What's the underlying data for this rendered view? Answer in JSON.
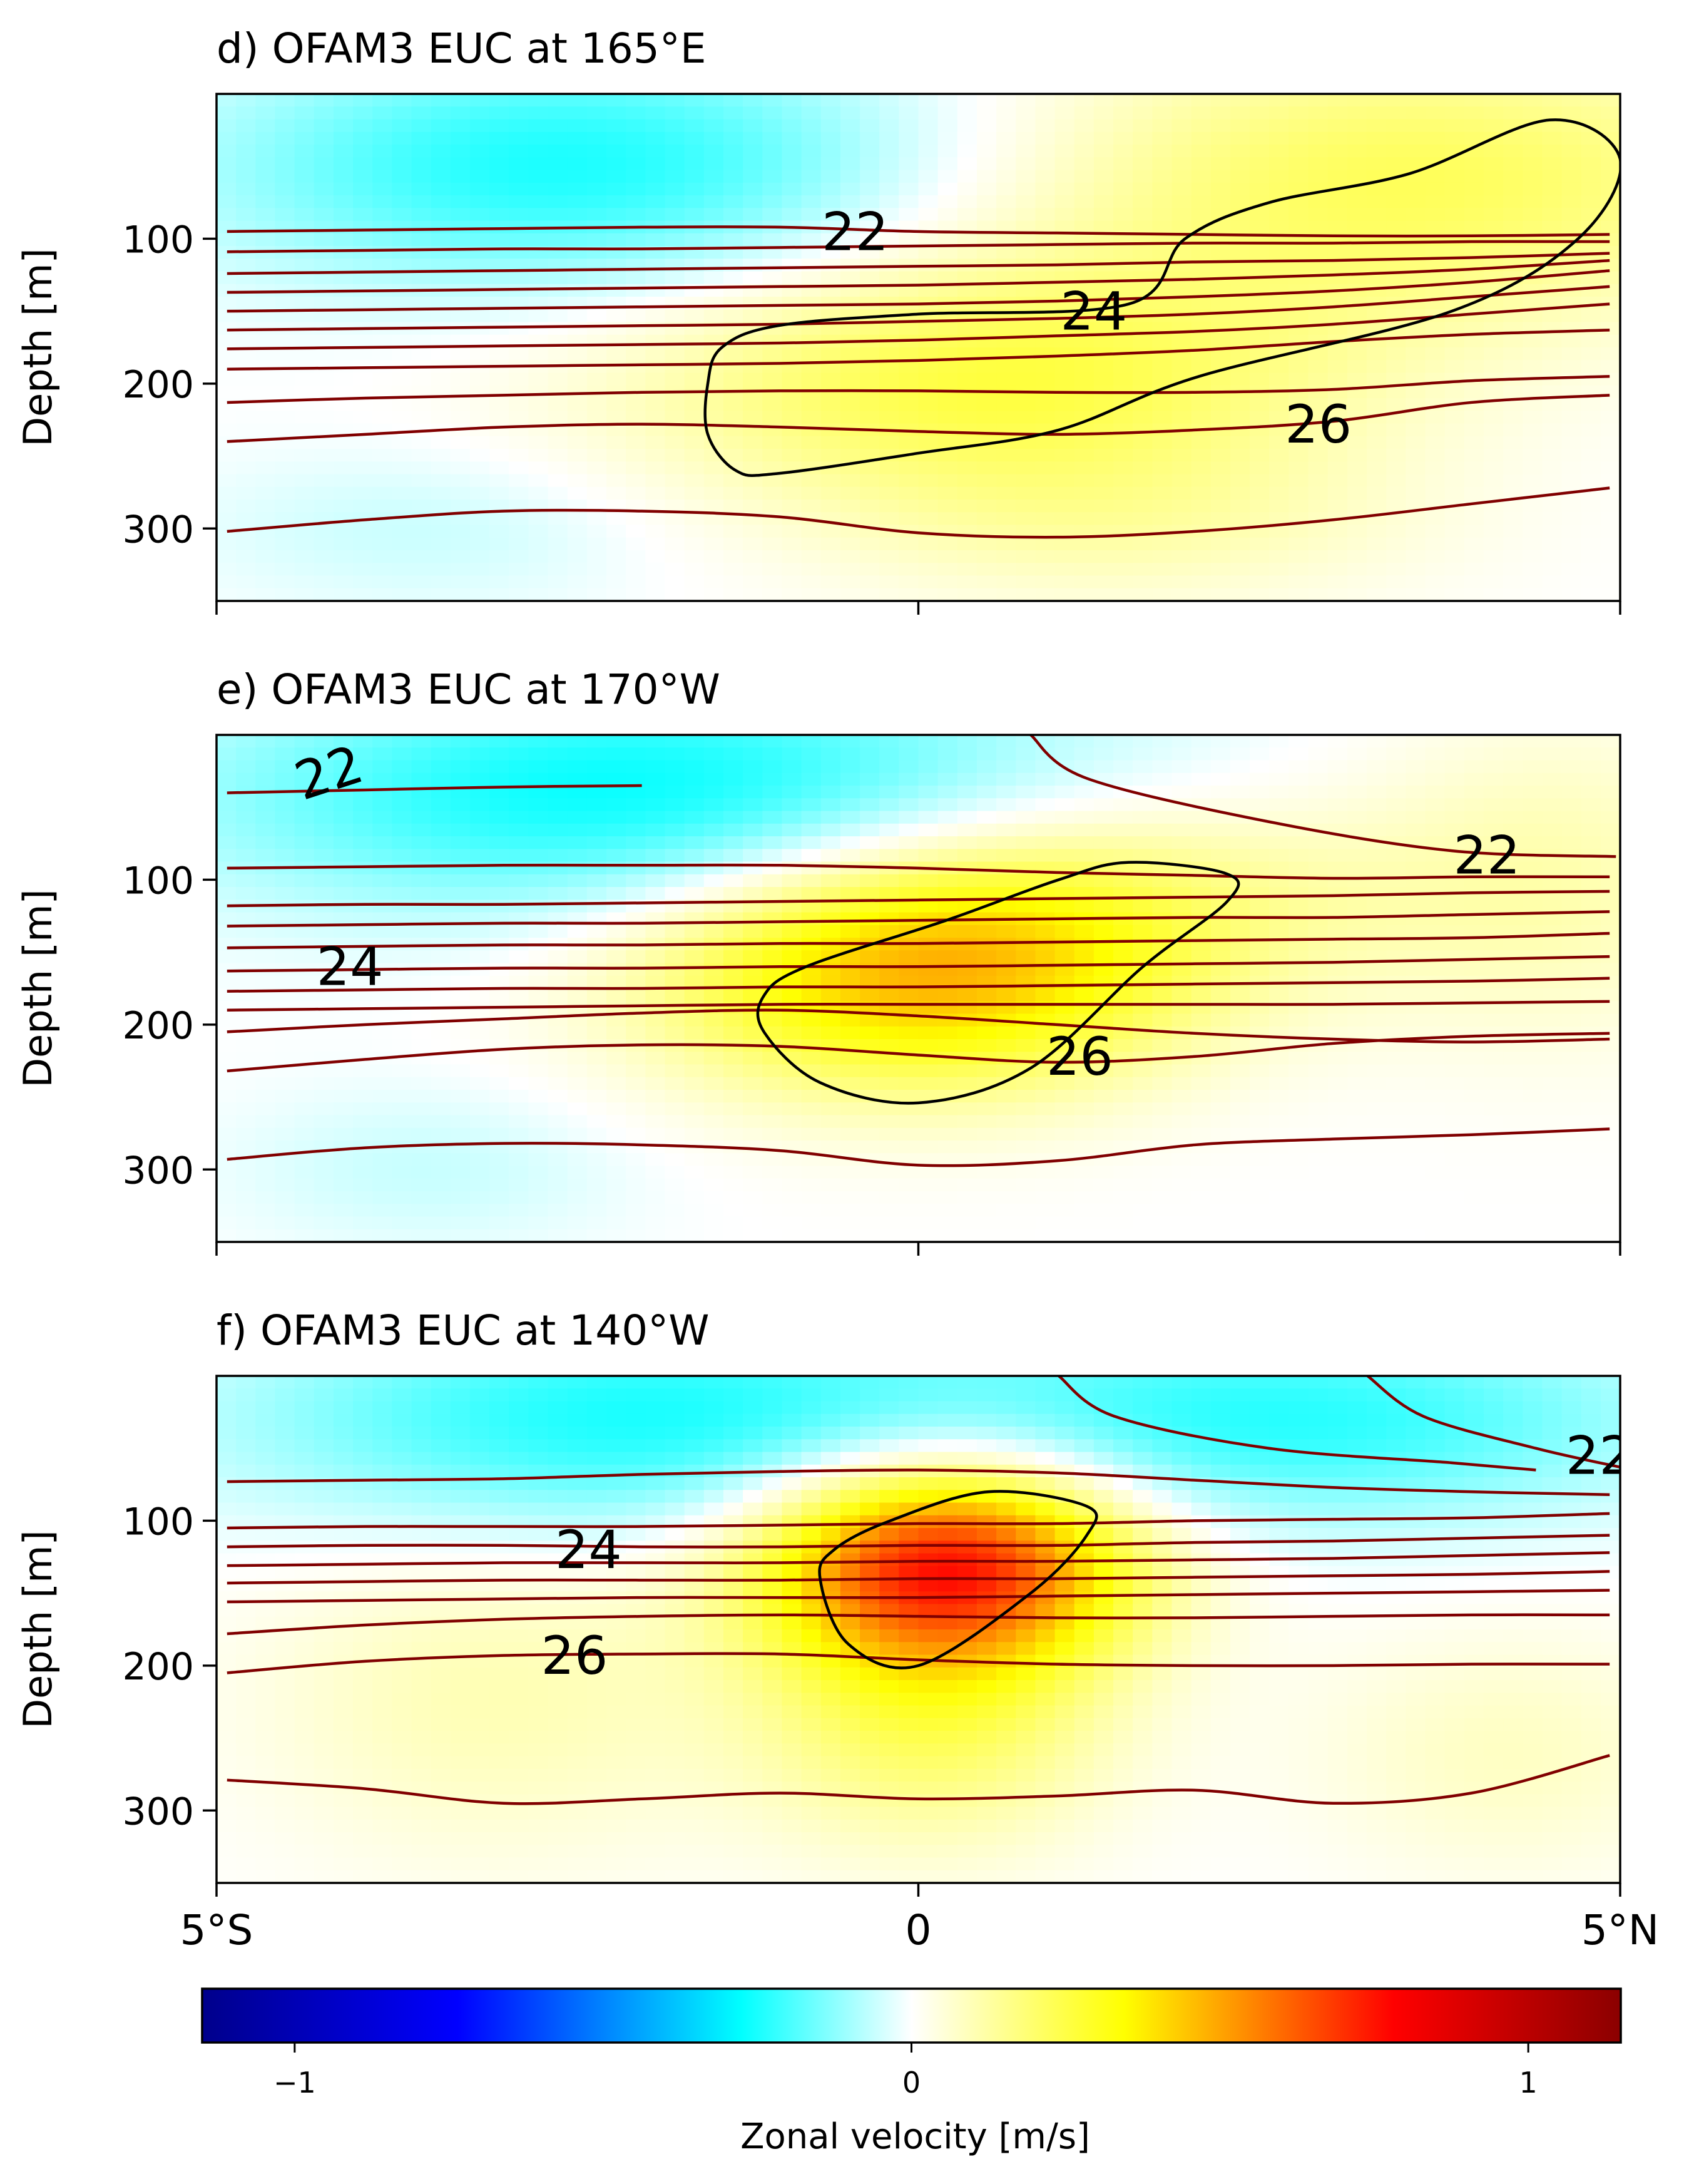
{
  "colors": {
    "colormap": [
      "#00008b",
      "#0000ff",
      "#00ffff",
      "#ffffff",
      "#ffff00",
      "#ff0000",
      "#8b0000"
    ],
    "isotherm": "#800000",
    "velocity_contour": "#000000"
  },
  "chart_data": [
    {
      "type": "heatmap",
      "title": "d) OFAM3 EUC at 165°E",
      "ylabel": "Depth [m]",
      "xlim": [
        -5,
        5
      ],
      "ylim": [
        350,
        0
      ],
      "x_ticks": [
        -5,
        0,
        5
      ],
      "y_ticks": [
        100,
        200,
        300
      ],
      "y_tick_labels": [
        "100",
        "200",
        "300"
      ],
      "grid": false,
      "field_description": "zonal velocity",
      "velocity_blobs": [
        {
          "lat": -2.5,
          "depth": 50,
          "value": -0.25,
          "sigma_lat": 1.8,
          "sigma_depth": 60
        },
        {
          "lat": 3.5,
          "depth": 60,
          "value": 0.22,
          "sigma_lat": 2.0,
          "sigma_depth": 70
        },
        {
          "lat": 0.5,
          "depth": 200,
          "value": 0.25,
          "sigma_lat": 1.8,
          "sigma_depth": 60
        },
        {
          "lat": 1.5,
          "depth": 300,
          "value": 0.08,
          "sigma_lat": 1.5,
          "sigma_depth": 40
        },
        {
          "lat": -3.5,
          "depth": 300,
          "value": -0.06,
          "sigma_lat": 1.2,
          "sigma_depth": 40
        }
      ],
      "velocity_contour": [
        [
          -1.5,
          200
        ],
        [
          -1.4,
          175
        ],
        [
          -1.0,
          160
        ],
        [
          0.0,
          152
        ],
        [
          1.5,
          145
        ],
        [
          1.9,
          100
        ],
        [
          2.5,
          75
        ],
        [
          3.5,
          55
        ],
        [
          4.5,
          18
        ],
        [
          5.0,
          45
        ],
        [
          4.7,
          100
        ],
        [
          3.8,
          150
        ],
        [
          2.0,
          195
        ],
        [
          1.0,
          232
        ],
        [
          0.0,
          248
        ],
        [
          -1.0,
          262
        ],
        [
          -1.3,
          260
        ],
        [
          -1.5,
          235
        ]
      ],
      "isotherms": [
        {
          "depths": [
            95,
            94,
            93,
            92,
            92,
            95,
            96,
            97,
            98,
            98,
            97
          ],
          "label": "22",
          "label_at": [
            -0.45,
            95
          ]
        },
        {
          "depths": [
            109,
            108,
            107,
            107,
            106,
            105,
            104,
            103,
            103,
            102,
            102
          ]
        },
        {
          "depths": [
            124,
            123,
            122,
            121,
            120,
            119,
            118,
            116,
            115,
            113,
            110
          ]
        },
        {
          "depths": [
            137,
            136,
            135,
            134,
            133,
            132,
            130,
            128,
            125,
            121,
            115
          ]
        },
        {
          "depths": [
            150,
            149,
            148,
            147,
            146,
            145,
            143,
            140,
            136,
            130,
            122
          ]
        },
        {
          "depths": [
            163,
            162,
            161,
            160,
            159,
            157,
            155,
            152,
            147,
            140,
            133
          ],
          "label": "24",
          "label_at": [
            1.25,
            150
          ]
        },
        {
          "depths": [
            176,
            175,
            174,
            173,
            172,
            170,
            167,
            164,
            159,
            152,
            145
          ]
        },
        {
          "depths": [
            190,
            189,
            188,
            187,
            186,
            184,
            181,
            177,
            171,
            166,
            163
          ]
        },
        {
          "depths": [
            213,
            210,
            208,
            206,
            205,
            205,
            206,
            206,
            204,
            198,
            195
          ]
        },
        {
          "depths": [
            240,
            235,
            230,
            228,
            230,
            233,
            235,
            232,
            226,
            213,
            208
          ],
          "label": "26",
          "label_at": [
            2.85,
            228
          ]
        },
        {
          "depths": [
            302,
            294,
            288,
            288,
            292,
            303,
            306,
            302,
            294,
            283,
            272
          ]
        }
      ]
    },
    {
      "type": "heatmap",
      "title": "e) OFAM3 EUC at 170°W",
      "ylabel": "Depth [m]",
      "xlim": [
        -5,
        5
      ],
      "ylim": [
        350,
        0
      ],
      "x_ticks": [
        -5,
        0,
        5
      ],
      "y_ticks": [
        100,
        200,
        300
      ],
      "y_tick_labels": [
        "100",
        "200",
        "300"
      ],
      "grid": false,
      "field_description": "zonal velocity",
      "velocity_blobs": [
        {
          "lat": -2.0,
          "depth": 40,
          "value": -0.28,
          "sigma_lat": 2.2,
          "sigma_depth": 60
        },
        {
          "lat": 0.0,
          "depth": 170,
          "value": 0.42,
          "sigma_lat": 1.3,
          "sigma_depth": 55
        },
        {
          "lat": 1.0,
          "depth": 110,
          "value": 0.18,
          "sigma_lat": 1.6,
          "sigma_depth": 50
        },
        {
          "lat": 4.5,
          "depth": 100,
          "value": 0.1,
          "sigma_lat": 1.0,
          "sigma_depth": 80
        },
        {
          "lat": -3.5,
          "depth": 300,
          "value": -0.06,
          "sigma_lat": 1.0,
          "sigma_depth": 40
        }
      ],
      "velocity_contour": [
        [
          -1.1,
          180
        ],
        [
          -0.8,
          160
        ],
        [
          0.2,
          128
        ],
        [
          1.0,
          100
        ],
        [
          1.5,
          88
        ],
        [
          2.2,
          96
        ],
        [
          2.2,
          115
        ],
        [
          1.6,
          160
        ],
        [
          0.8,
          230
        ],
        [
          0.0,
          254
        ],
        [
          -0.7,
          240
        ],
        [
          -1.1,
          205
        ]
      ],
      "isotherms": [
        {
          "depths": [
            40,
            38,
            36,
            35,
            null,
            null,
            null,
            null,
            null,
            null,
            null
          ],
          "label": "22",
          "label_at": [
            -4.2,
            26
          ],
          "label_rot": -18
        },
        {
          "path": [
            [
              0.8,
              0
            ],
            [
              1.2,
              30
            ],
            [
              2.5,
              60
            ],
            [
              3.8,
              80
            ],
            [
              4.97,
              84
            ]
          ],
          "label": "22",
          "label_at": [
            4.05,
            83
          ]
        },
        {
          "depths": [
            92,
            91,
            90,
            90,
            90,
            92,
            95,
            97,
            99,
            98,
            98
          ]
        },
        {
          "depths": [
            118,
            117,
            117,
            116,
            115,
            114,
            113,
            112,
            111,
            109,
            108
          ]
        },
        {
          "depths": [
            132,
            131,
            130,
            130,
            129,
            128,
            127,
            126,
            126,
            124,
            122
          ]
        },
        {
          "depths": [
            147,
            146,
            145,
            145,
            144,
            144,
            143,
            142,
            141,
            140,
            137
          ]
        },
        {
          "depths": [
            163,
            162,
            161,
            161,
            160,
            160,
            159,
            158,
            157,
            155,
            153
          ],
          "label": "24",
          "label_at": [
            -4.05,
            160
          ]
        },
        {
          "depths": [
            177,
            176,
            175,
            175,
            174,
            174,
            173,
            172,
            171,
            170,
            168
          ]
        },
        {
          "depths": [
            190,
            189,
            188,
            187,
            186,
            186,
            186,
            186,
            186,
            185,
            184
          ]
        },
        {
          "depths": [
            205,
            200,
            196,
            192,
            190,
            194,
            200,
            206,
            210,
            212,
            210
          ]
        },
        {
          "depths": [
            232,
            224,
            217,
            214,
            215,
            221,
            226,
            222,
            213,
            208,
            206
          ],
          "label": "26",
          "label_at": [
            1.15,
            222
          ]
        },
        {
          "depths": [
            293,
            285,
            282,
            283,
            287,
            297,
            294,
            283,
            279,
            276,
            272
          ]
        }
      ]
    },
    {
      "type": "heatmap",
      "title": "f) OFAM3 EUC at 140°W",
      "ylabel": "Depth [m]",
      "xlim": [
        -5,
        5
      ],
      "ylim": [
        350,
        0
      ],
      "x_ticks": [
        -5,
        0,
        5
      ],
      "x_tick_labels": [
        "5°S",
        "0",
        "5°N"
      ],
      "y_ticks": [
        100,
        200,
        300
      ],
      "y_tick_labels": [
        "100",
        "200",
        "300"
      ],
      "grid": false,
      "field_description": "zonal velocity",
      "velocity_blobs": [
        {
          "lat": -2.0,
          "depth": 30,
          "value": -0.25,
          "sigma_lat": 2.0,
          "sigma_depth": 55
        },
        {
          "lat": 2.8,
          "depth": 30,
          "value": -0.22,
          "sigma_lat": 1.8,
          "sigma_depth": 50
        },
        {
          "lat": 0.2,
          "depth": 130,
          "value": 0.75,
          "sigma_lat": 0.9,
          "sigma_depth": 50
        },
        {
          "lat": 0.1,
          "depth": 240,
          "value": 0.2,
          "sigma_lat": 0.9,
          "sigma_depth": 60
        },
        {
          "lat": -3.0,
          "depth": 220,
          "value": 0.1,
          "sigma_lat": 1.2,
          "sigma_depth": 80
        },
        {
          "lat": 4.2,
          "depth": 260,
          "value": 0.08,
          "sigma_lat": 1.0,
          "sigma_depth": 60
        }
      ],
      "velocity_contour": [
        [
          -0.7,
          140
        ],
        [
          -0.6,
          120
        ],
        [
          -0.2,
          100
        ],
        [
          0.5,
          80
        ],
        [
          1.2,
          90
        ],
        [
          1.2,
          110
        ],
        [
          0.8,
          150
        ],
        [
          0.0,
          200
        ],
        [
          -0.5,
          185
        ]
      ],
      "isotherms": [
        {
          "path": [
            [
              1.0,
              0
            ],
            [
              1.4,
              28
            ],
            [
              2.5,
              50
            ],
            [
              3.8,
              60
            ],
            [
              4.4,
              65
            ]
          ]
        },
        {
          "path": [
            [
              3.2,
              0
            ],
            [
              3.6,
              28
            ],
            [
              4.4,
              50
            ],
            [
              5.0,
              63
            ]
          ],
          "label": "22",
          "label_at": [
            4.85,
            55
          ]
        },
        {
          "depths": [
            73,
            72,
            71,
            68,
            66,
            65,
            67,
            72,
            77,
            80,
            82
          ]
        },
        {
          "depths": [
            105,
            104,
            104,
            104,
            103,
            102,
            102,
            100,
            99,
            98,
            95
          ]
        },
        {
          "depths": [
            118,
            117,
            117,
            118,
            118,
            117,
            117,
            115,
            114,
            112,
            110
          ]
        },
        {
          "depths": [
            131,
            130,
            129,
            129,
            129,
            128,
            128,
            127,
            126,
            124,
            122
          ],
          "label": "24",
          "label_at": [
            -2.35,
            120
          ]
        },
        {
          "depths": [
            143,
            142,
            141,
            141,
            141,
            140,
            140,
            139,
            138,
            137,
            135
          ]
        },
        {
          "depths": [
            156,
            155,
            154,
            153,
            153,
            153,
            152,
            151,
            150,
            149,
            148
          ]
        },
        {
          "depths": [
            178,
            172,
            168,
            166,
            165,
            166,
            167,
            167,
            166,
            165,
            165
          ]
        },
        {
          "depths": [
            205,
            197,
            193,
            192,
            192,
            196,
            199,
            200,
            200,
            199,
            199
          ],
          "label": "26",
          "label_at": [
            -2.45,
            193
          ]
        },
        {
          "depths": [
            279,
            285,
            295,
            292,
            288,
            292,
            290,
            286,
            295,
            288,
            262
          ]
        }
      ]
    }
  ],
  "colorbar": {
    "label": "Zonal velocity [m/s]",
    "range": [
      -1.15,
      1.15
    ],
    "ticks": [
      -1,
      0,
      1
    ],
    "tick_labels": [
      "−1",
      "0",
      "1"
    ]
  }
}
